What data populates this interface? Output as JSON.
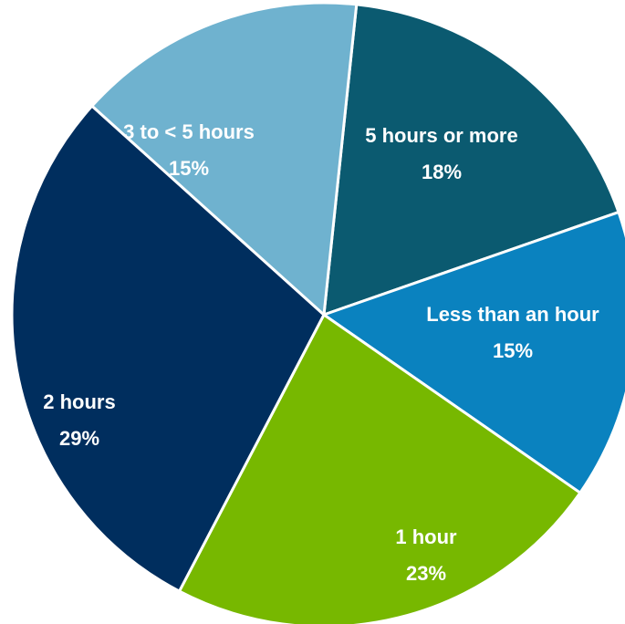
{
  "chart_data": {
    "type": "pie",
    "title": "",
    "legend": "none",
    "slices": [
      {
        "label": "5 hours or more",
        "value": 18,
        "display": "18%",
        "color": "#0b5a70"
      },
      {
        "label": "Less than an hour",
        "value": 15,
        "display": "15%",
        "color": "#0a82bf"
      },
      {
        "label": "1 hour",
        "value": 23,
        "display": "23%",
        "color": "#77b800"
      },
      {
        "label": "2 hours",
        "value": 29,
        "display": "29%",
        "color": "#002e5e"
      },
      {
        "label": "3 to < 5 hours",
        "value": 15,
        "display": "15%",
        "color": "#6fb2cf"
      }
    ]
  }
}
